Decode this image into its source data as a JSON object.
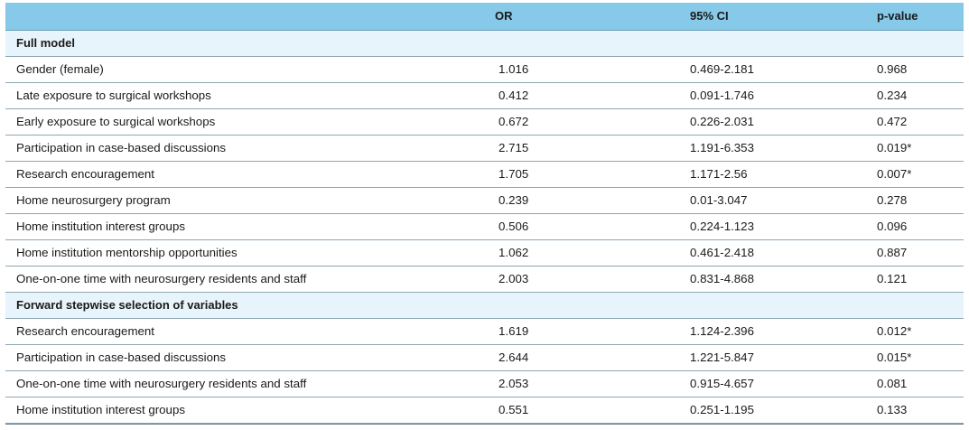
{
  "header": {
    "variable": "",
    "or": "OR",
    "ci": "95% CI",
    "p": "p-value"
  },
  "sections": [
    {
      "title": "Full model",
      "rows": [
        {
          "label": "Gender (female)",
          "or": "1.016",
          "ci": "0.469-2.181",
          "p": "0.968"
        },
        {
          "label": "Late exposure to surgical workshops",
          "or": "0.412",
          "ci": "0.091-1.746",
          "p": "0.234"
        },
        {
          "label": "Early exposure to surgical workshops",
          "or": "0.672",
          "ci": "0.226-2.031",
          "p": "0.472"
        },
        {
          "label": "Participation in case-based discussions",
          "or": "2.715",
          "ci": "1.191-6.353",
          "p": "0.019*"
        },
        {
          "label": "Research encouragement",
          "or": "1.705",
          "ci": "1.171-2.56",
          "p": "0.007*"
        },
        {
          "label": "Home neurosurgery program",
          "or": "0.239",
          "ci": "0.01-3.047",
          "p": "0.278"
        },
        {
          "label": "Home institution interest groups",
          "or": "0.506",
          "ci": "0.224-1.123",
          "p": "0.096"
        },
        {
          "label": "Home institution mentorship opportunities",
          "or": "1.062",
          "ci": "0.461-2.418",
          "p": "0.887"
        },
        {
          "label": "One-on-one time with neurosurgery residents and staff",
          "or": "2.003",
          "ci": "0.831-4.868",
          "p": "0.121"
        }
      ]
    },
    {
      "title": "Forward stepwise selection of variables",
      "rows": [
        {
          "label": "Research encouragement",
          "or": "1.619",
          "ci": "1.124-2.396",
          "p": "0.012*"
        },
        {
          "label": "Participation in case-based discussions",
          "or": "2.644",
          "ci": "1.221-5.847",
          "p": "0.015*"
        },
        {
          "label": "One-on-one time with neurosurgery residents and staff",
          "or": "2.053",
          "ci": "0.915-4.657",
          "p": "0.081"
        },
        {
          "label": "Home institution interest groups",
          "or": "0.551",
          "ci": "0.251-1.195",
          "p": "0.133"
        }
      ]
    }
  ]
}
